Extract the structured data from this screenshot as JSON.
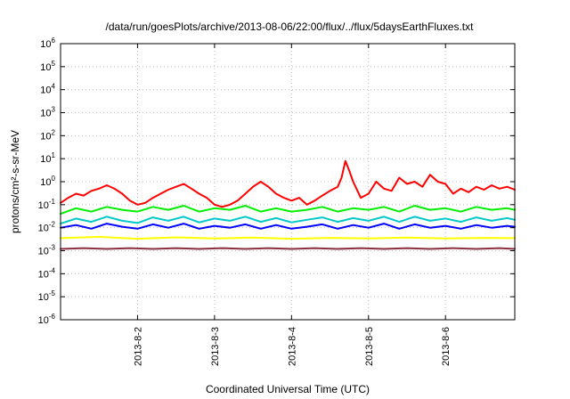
{
  "chart_data": {
    "type": "line",
    "title": "/data/run/goesPlots/archive/2013-08-06/22:00/flux/../flux/5daysEarthFluxes.txt",
    "xlabel": "Coordinated Universal Time (UTC)",
    "ylabel": "protons/cm²-s-sr-MeV",
    "yscale": "log",
    "ylim": [
      1e-06,
      1000000.0
    ],
    "xlim": [
      0,
      5.9
    ],
    "x_ticks": [
      {
        "x": 1,
        "label": "2013-8-2"
      },
      {
        "x": 2,
        "label": "2013-8-3"
      },
      {
        "x": 3,
        "label": "2013-8-4"
      },
      {
        "x": 4,
        "label": "2013-8-5"
      },
      {
        "x": 5,
        "label": "2013-8-6"
      }
    ],
    "y_ticks": [
      {
        "exp": -6,
        "base": "10",
        "sup": "-6"
      },
      {
        "exp": -5,
        "base": "10",
        "sup": "-5"
      },
      {
        "exp": -4,
        "base": "10",
        "sup": "-4"
      },
      {
        "exp": -3,
        "base": "10",
        "sup": "-3"
      },
      {
        "exp": -2,
        "base": "10",
        "sup": "-2"
      },
      {
        "exp": -1,
        "base": "10",
        "sup": "-1"
      },
      {
        "exp": 0,
        "base": "10",
        "sup": "0"
      },
      {
        "exp": 1,
        "base": "10",
        "sup": "1"
      },
      {
        "exp": 2,
        "base": "10",
        "sup": "2"
      },
      {
        "exp": 3,
        "base": "10",
        "sup": "3"
      },
      {
        "exp": 4,
        "base": "10",
        "sup": "4"
      },
      {
        "exp": 5,
        "base": "10",
        "sup": "5"
      },
      {
        "exp": 6,
        "base": "10",
        "sup": "6"
      }
    ],
    "grid": true,
    "legend": "none",
    "series": [
      {
        "color": "#ff0000",
        "points": [
          [
            0.0,
            0.12
          ],
          [
            0.1,
            0.2
          ],
          [
            0.2,
            0.3
          ],
          [
            0.3,
            0.25
          ],
          [
            0.4,
            0.4
          ],
          [
            0.5,
            0.5
          ],
          [
            0.6,
            0.7
          ],
          [
            0.7,
            0.5
          ],
          [
            0.8,
            0.3
          ],
          [
            0.9,
            0.15
          ],
          [
            1.0,
            0.1
          ],
          [
            1.1,
            0.12
          ],
          [
            1.2,
            0.2
          ],
          [
            1.3,
            0.3
          ],
          [
            1.4,
            0.45
          ],
          [
            1.5,
            0.6
          ],
          [
            1.6,
            0.8
          ],
          [
            1.7,
            0.5
          ],
          [
            1.8,
            0.3
          ],
          [
            1.9,
            0.2
          ],
          [
            2.0,
            0.1
          ],
          [
            2.1,
            0.08
          ],
          [
            2.2,
            0.1
          ],
          [
            2.3,
            0.15
          ],
          [
            2.4,
            0.3
          ],
          [
            2.5,
            0.6
          ],
          [
            2.6,
            1.0
          ],
          [
            2.7,
            0.6
          ],
          [
            2.8,
            0.3
          ],
          [
            2.9,
            0.2
          ],
          [
            3.0,
            0.15
          ],
          [
            3.1,
            0.2
          ],
          [
            3.2,
            0.1
          ],
          [
            3.3,
            0.15
          ],
          [
            3.4,
            0.25
          ],
          [
            3.5,
            0.4
          ],
          [
            3.6,
            0.6
          ],
          [
            3.65,
            1.5
          ],
          [
            3.7,
            8.0
          ],
          [
            3.75,
            3.0
          ],
          [
            3.8,
            1.0
          ],
          [
            3.9,
            0.2
          ],
          [
            4.0,
            0.3
          ],
          [
            4.1,
            1.0
          ],
          [
            4.2,
            0.5
          ],
          [
            4.3,
            0.4
          ],
          [
            4.4,
            1.5
          ],
          [
            4.5,
            0.8
          ],
          [
            4.6,
            1.0
          ],
          [
            4.7,
            0.6
          ],
          [
            4.8,
            2.0
          ],
          [
            4.9,
            1.0
          ],
          [
            5.0,
            0.8
          ],
          [
            5.1,
            0.3
          ],
          [
            5.2,
            0.5
          ],
          [
            5.3,
            0.35
          ],
          [
            5.4,
            0.6
          ],
          [
            5.5,
            0.45
          ],
          [
            5.6,
            0.7
          ],
          [
            5.7,
            0.5
          ],
          [
            5.8,
            0.6
          ],
          [
            5.9,
            0.45
          ]
        ]
      },
      {
        "color": "#00ee00",
        "points": [
          [
            0.0,
            0.04
          ],
          [
            0.2,
            0.07
          ],
          [
            0.4,
            0.05
          ],
          [
            0.6,
            0.08
          ],
          [
            0.8,
            0.06
          ],
          [
            1.0,
            0.05
          ],
          [
            1.2,
            0.08
          ],
          [
            1.4,
            0.06
          ],
          [
            1.6,
            0.09
          ],
          [
            1.8,
            0.05
          ],
          [
            2.0,
            0.07
          ],
          [
            2.2,
            0.06
          ],
          [
            2.4,
            0.09
          ],
          [
            2.6,
            0.05
          ],
          [
            2.8,
            0.07
          ],
          [
            3.0,
            0.05
          ],
          [
            3.2,
            0.06
          ],
          [
            3.4,
            0.08
          ],
          [
            3.6,
            0.05
          ],
          [
            3.8,
            0.07
          ],
          [
            4.0,
            0.06
          ],
          [
            4.2,
            0.08
          ],
          [
            4.4,
            0.05
          ],
          [
            4.6,
            0.09
          ],
          [
            4.8,
            0.06
          ],
          [
            5.0,
            0.07
          ],
          [
            5.2,
            0.05
          ],
          [
            5.4,
            0.08
          ],
          [
            5.6,
            0.06
          ],
          [
            5.8,
            0.07
          ],
          [
            5.9,
            0.06
          ]
        ]
      },
      {
        "color": "#00c8c8",
        "points": [
          [
            0.0,
            0.015
          ],
          [
            0.2,
            0.025
          ],
          [
            0.4,
            0.018
          ],
          [
            0.6,
            0.03
          ],
          [
            0.8,
            0.02
          ],
          [
            1.0,
            0.016
          ],
          [
            1.2,
            0.028
          ],
          [
            1.4,
            0.02
          ],
          [
            1.6,
            0.03
          ],
          [
            1.8,
            0.017
          ],
          [
            2.0,
            0.025
          ],
          [
            2.2,
            0.02
          ],
          [
            2.4,
            0.03
          ],
          [
            2.6,
            0.018
          ],
          [
            2.8,
            0.026
          ],
          [
            3.0,
            0.017
          ],
          [
            3.2,
            0.022
          ],
          [
            3.4,
            0.028
          ],
          [
            3.6,
            0.018
          ],
          [
            3.8,
            0.026
          ],
          [
            4.0,
            0.02
          ],
          [
            4.2,
            0.03
          ],
          [
            4.4,
            0.018
          ],
          [
            4.6,
            0.03
          ],
          [
            4.8,
            0.02
          ],
          [
            5.0,
            0.025
          ],
          [
            5.2,
            0.018
          ],
          [
            5.4,
            0.028
          ],
          [
            5.6,
            0.02
          ],
          [
            5.8,
            0.026
          ],
          [
            5.9,
            0.022
          ]
        ]
      },
      {
        "color": "#0000ff",
        "points": [
          [
            0.0,
            0.01
          ],
          [
            0.2,
            0.013
          ],
          [
            0.4,
            0.009
          ],
          [
            0.6,
            0.015
          ],
          [
            0.8,
            0.011
          ],
          [
            1.0,
            0.009
          ],
          [
            1.2,
            0.014
          ],
          [
            1.4,
            0.01
          ],
          [
            1.6,
            0.015
          ],
          [
            1.8,
            0.009
          ],
          [
            2.0,
            0.012
          ],
          [
            2.2,
            0.01
          ],
          [
            2.4,
            0.014
          ],
          [
            2.6,
            0.009
          ],
          [
            2.8,
            0.013
          ],
          [
            3.0,
            0.009
          ],
          [
            3.2,
            0.011
          ],
          [
            3.4,
            0.014
          ],
          [
            3.6,
            0.009
          ],
          [
            3.8,
            0.013
          ],
          [
            4.0,
            0.01
          ],
          [
            4.2,
            0.015
          ],
          [
            4.4,
            0.009
          ],
          [
            4.6,
            0.014
          ],
          [
            4.8,
            0.01
          ],
          [
            5.0,
            0.012
          ],
          [
            5.2,
            0.009
          ],
          [
            5.4,
            0.013
          ],
          [
            5.6,
            0.01
          ],
          [
            5.8,
            0.012
          ],
          [
            5.9,
            0.011
          ]
        ]
      },
      {
        "color": "#ffff00",
        "points": [
          [
            0.0,
            0.0035
          ],
          [
            0.5,
            0.004
          ],
          [
            1.0,
            0.0033
          ],
          [
            1.5,
            0.0038
          ],
          [
            2.0,
            0.0034
          ],
          [
            2.5,
            0.0037
          ],
          [
            3.0,
            0.0033
          ],
          [
            3.5,
            0.0036
          ],
          [
            4.0,
            0.0034
          ],
          [
            4.5,
            0.0037
          ],
          [
            5.0,
            0.0034
          ],
          [
            5.5,
            0.0036
          ],
          [
            5.9,
            0.0035
          ]
        ]
      },
      {
        "color": "#8b2f3e",
        "points": [
          [
            0.0,
            0.0012
          ],
          [
            0.3,
            0.0013
          ],
          [
            0.6,
            0.0012
          ],
          [
            0.9,
            0.0013
          ],
          [
            1.2,
            0.0012
          ],
          [
            1.5,
            0.0013
          ],
          [
            1.8,
            0.0012
          ],
          [
            2.1,
            0.0013
          ],
          [
            2.4,
            0.0012
          ],
          [
            2.7,
            0.0013
          ],
          [
            3.0,
            0.0012
          ],
          [
            3.3,
            0.0013
          ],
          [
            3.6,
            0.0012
          ],
          [
            3.9,
            0.0013
          ],
          [
            4.2,
            0.0012
          ],
          [
            4.5,
            0.0013
          ],
          [
            4.8,
            0.0012
          ],
          [
            5.1,
            0.0013
          ],
          [
            5.4,
            0.0012
          ],
          [
            5.7,
            0.0013
          ],
          [
            5.9,
            0.0012
          ]
        ]
      }
    ]
  }
}
